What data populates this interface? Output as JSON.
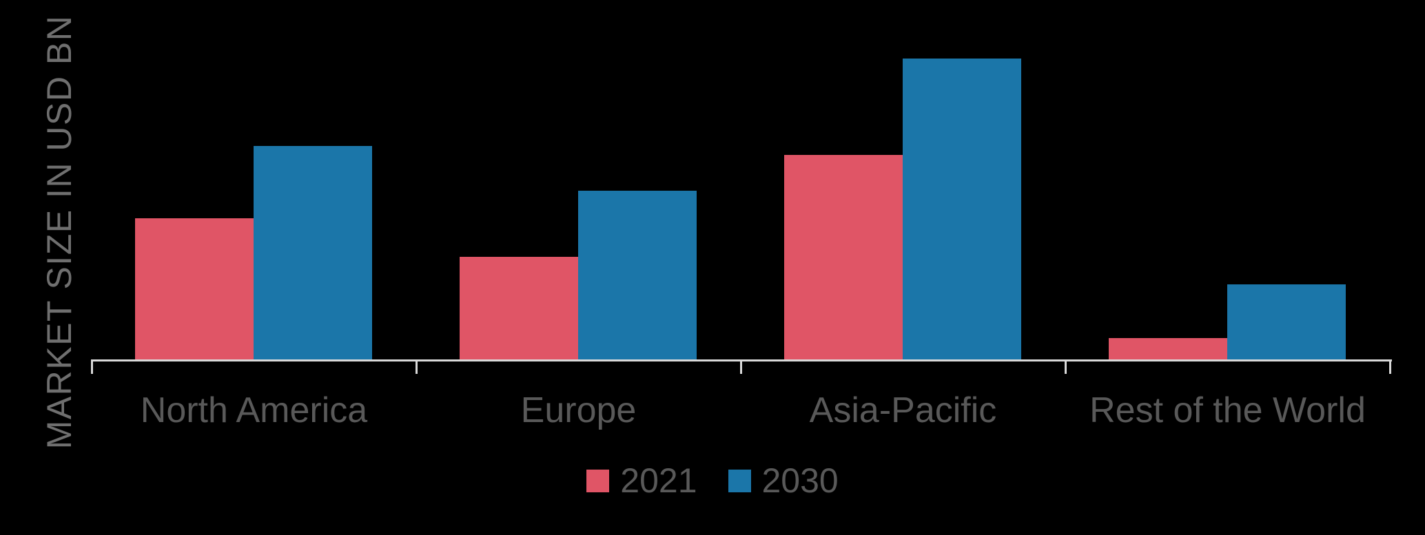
{
  "chart_data": {
    "type": "bar",
    "title": "",
    "ylabel": "MARKET SIZE IN USD BN",
    "xlabel": "",
    "categories": [
      "North America",
      "Europe",
      "Asia-Pacific",
      "Rest of the World"
    ],
    "series": [
      {
        "name": "2021",
        "color": "#e05566",
        "values": [
          47,
          34,
          68,
          7
        ]
      },
      {
        "name": "2030",
        "color": "#1b76a9",
        "values": [
          71,
          56,
          100,
          25
        ]
      }
    ],
    "value_note": "relative units estimated from bar heights; chart displays no numeric y-axis ticks or data labels (Asia-Pacific 2030 = 100)",
    "ylim": [
      0,
      107
    ],
    "gridlines": false,
    "y_ticks_visible": false,
    "legend_position": "bottom-center"
  },
  "colors": {
    "background": "#000000",
    "axis": "#d9d9d9",
    "category_label_text": "#595959",
    "legend_text": "#595959",
    "y_axis_title_text": "#6f6f6f",
    "series_2021": "#e05566",
    "series_2030": "#1b76a9"
  }
}
